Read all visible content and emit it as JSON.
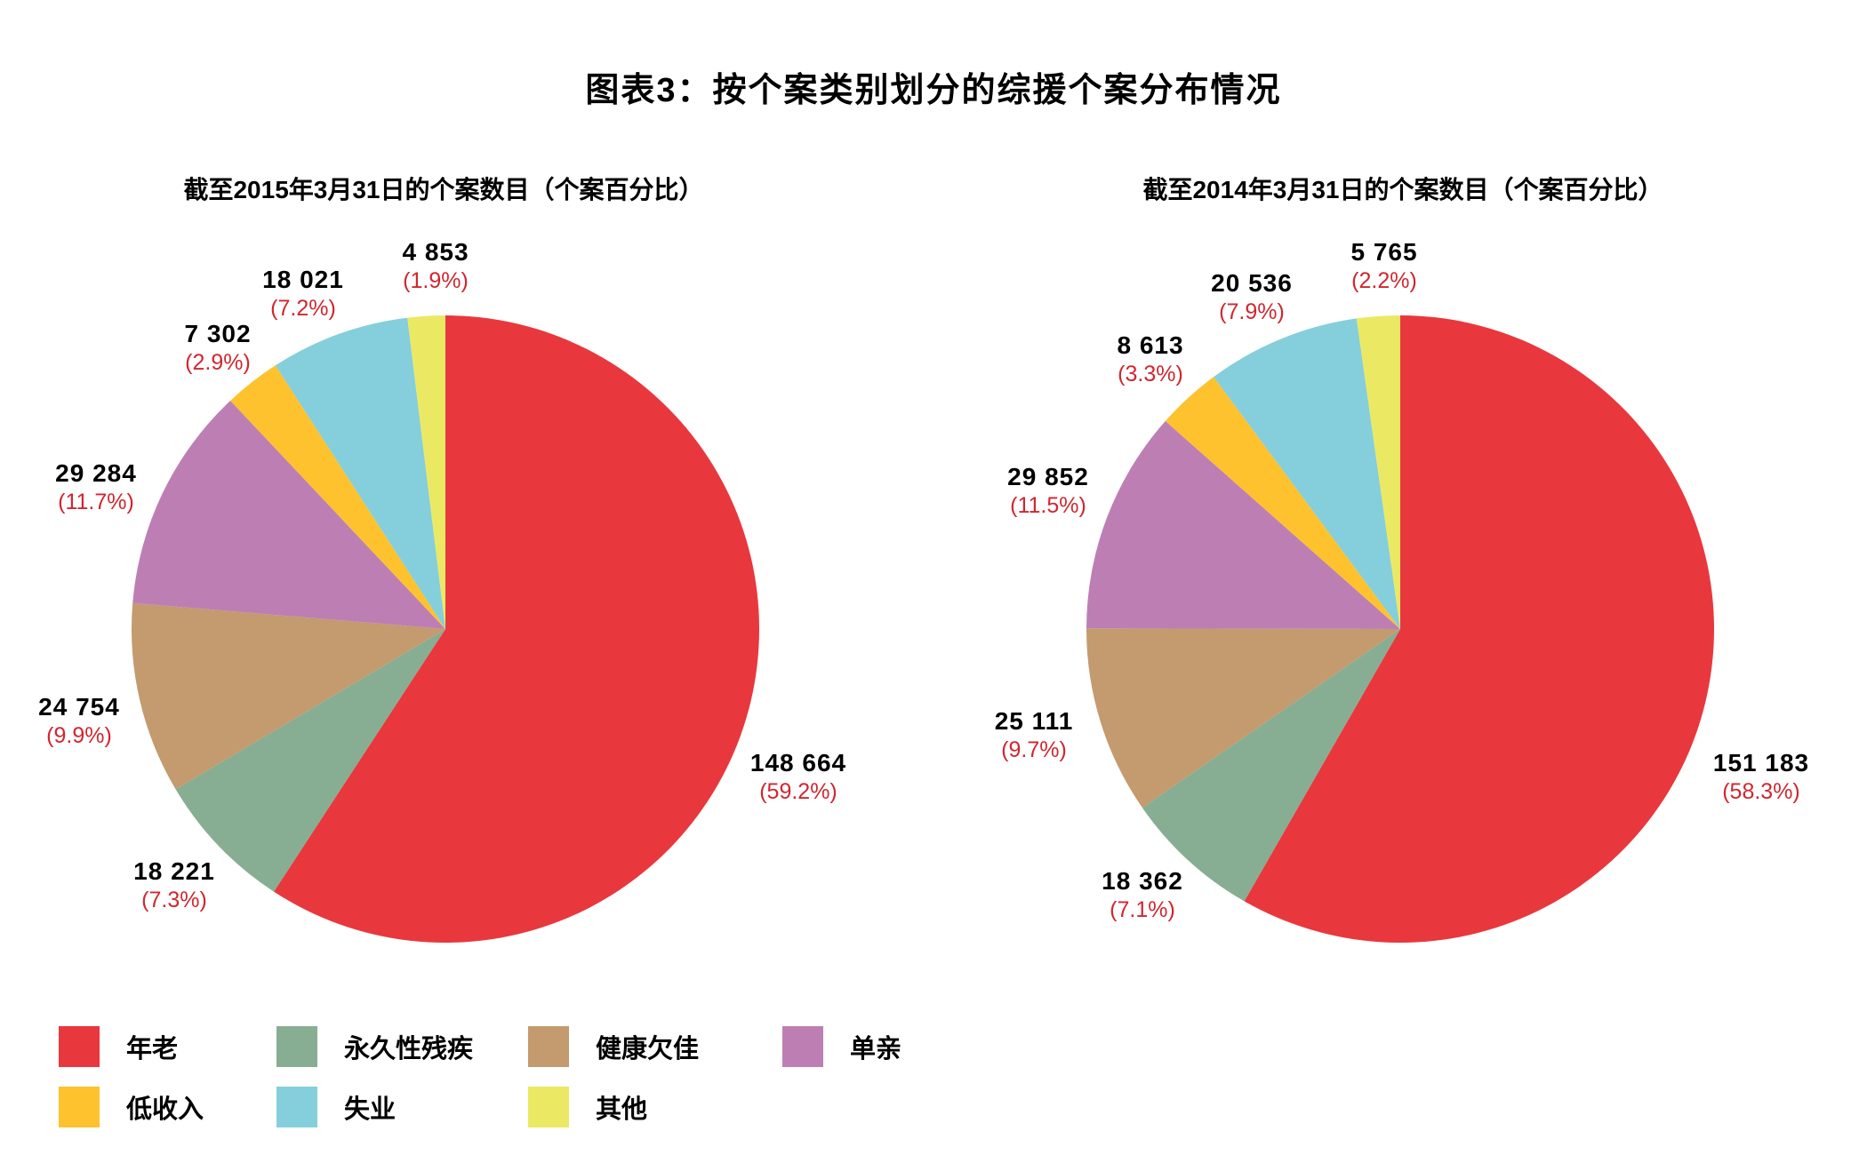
{
  "title": "图表3：按个案类别划分的综援个案分布情况",
  "legend": [
    {
      "label": "年老",
      "color": "#e8383d"
    },
    {
      "label": "永久性残疾",
      "color": "#87ae92"
    },
    {
      "label": "健康欠佳",
      "color": "#c49a6f"
    },
    {
      "label": "单亲",
      "color": "#bd7fb3"
    },
    {
      "label": "低收入",
      "color": "#fdc22e"
    },
    {
      "label": "失业",
      "color": "#84cfdb"
    },
    {
      "label": "其他",
      "color": "#ebe964"
    }
  ],
  "charts": [
    {
      "subtitle": "截至2015年3月31日的个案数目（个案百分比）",
      "labels": [
        {
          "num": "148 664",
          "pct": "(59.2%)"
        },
        {
          "num": "18 221",
          "pct": "(7.3%)"
        },
        {
          "num": "24 754",
          "pct": "(9.9%)"
        },
        {
          "num": "29 284",
          "pct": "(11.7%)"
        },
        {
          "num": "7 302",
          "pct": "(2.9%)"
        },
        {
          "num": "18 021",
          "pct": "(7.2%)"
        },
        {
          "num": "4 853",
          "pct": "(1.9%)"
        }
      ]
    },
    {
      "subtitle": "截至2014年3月31日的个案数目（个案百分比）",
      "labels": [
        {
          "num": "151 183",
          "pct": "(58.3%)"
        },
        {
          "num": "18 362",
          "pct": "(7.1%)"
        },
        {
          "num": "25 111",
          "pct": "(9.7%)"
        },
        {
          "num": "29 852",
          "pct": "(11.5%)"
        },
        {
          "num": "8 613",
          "pct": "(3.3%)"
        },
        {
          "num": "20 536",
          "pct": "(7.9%)"
        },
        {
          "num": "5 765",
          "pct": "(2.2%)"
        }
      ]
    }
  ],
  "chart_data": [
    {
      "type": "pie",
      "title": "截至2015年3月31日的个案数目（个案百分比）",
      "categories": [
        "年老",
        "永久性残疾",
        "健康欠佳",
        "单亲",
        "低收入",
        "失业",
        "其他"
      ],
      "values": [
        148664,
        18221,
        24754,
        29284,
        7302,
        18021,
        4853
      ],
      "percentages": [
        59.2,
        7.3,
        9.9,
        11.7,
        2.9,
        7.2,
        1.9
      ],
      "colors": [
        "#e8383d",
        "#87ae92",
        "#c49a6f",
        "#bd7fb3",
        "#fdc22e",
        "#84cfdb",
        "#ebe964"
      ],
      "legend_position": "bottom"
    },
    {
      "type": "pie",
      "title": "截至2014年3月31日的个案数目（个案百分比）",
      "categories": [
        "年老",
        "永久性残疾",
        "健康欠佳",
        "单亲",
        "低收入",
        "失业",
        "其他"
      ],
      "values": [
        151183,
        18362,
        25111,
        29852,
        8613,
        20536,
        5765
      ],
      "percentages": [
        58.3,
        7.1,
        9.7,
        11.5,
        3.3,
        7.9,
        2.2
      ],
      "colors": [
        "#e8383d",
        "#87ae92",
        "#c49a6f",
        "#bd7fb3",
        "#fdc22e",
        "#84cfdb",
        "#ebe964"
      ],
      "legend_position": "bottom"
    }
  ]
}
